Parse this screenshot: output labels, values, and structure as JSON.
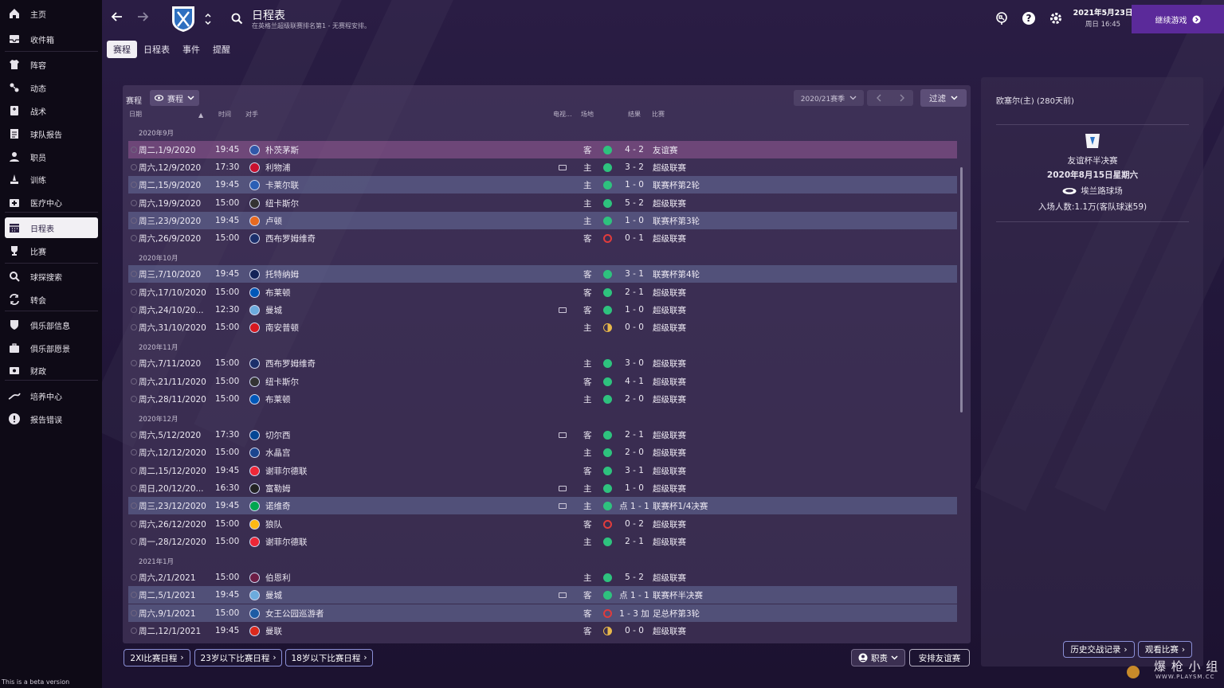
{
  "sidebar": {
    "items": [
      {
        "label": "主页",
        "icon": "home-icon"
      },
      {
        "label": "收件箱",
        "icon": "inbox-icon"
      },
      {
        "label": "阵容",
        "icon": "shirt-icon"
      },
      {
        "label": "动态",
        "icon": "dynamics-icon"
      },
      {
        "label": "战术",
        "icon": "tactics-icon"
      },
      {
        "label": "球队报告",
        "icon": "report-icon"
      },
      {
        "label": "职员",
        "icon": "staff-icon"
      },
      {
        "label": "训练",
        "icon": "training-icon"
      },
      {
        "label": "医疗中心",
        "icon": "medical-icon"
      },
      {
        "label": "日程表",
        "icon": "calendar-icon"
      },
      {
        "label": "比赛",
        "icon": "trophy-icon"
      },
      {
        "label": "球探搜索",
        "icon": "search-icon"
      },
      {
        "label": "转会",
        "icon": "transfer-icon"
      },
      {
        "label": "俱乐部信息",
        "icon": "shield-icon"
      },
      {
        "label": "俱乐部愿景",
        "icon": "briefcase-icon"
      },
      {
        "label": "财政",
        "icon": "finance-icon"
      },
      {
        "label": "培养中心",
        "icon": "development-icon"
      },
      {
        "label": "报告错误",
        "icon": "alert-icon"
      }
    ],
    "active_index": 9,
    "beta": "This is a beta version"
  },
  "header": {
    "title": "日程表",
    "subtitle": "在英格兰超级联赛排名第1 - 无赛程安排。",
    "date": "2021年5月23日",
    "date2": "周日 16:45",
    "continue": "继续游戏"
  },
  "tabs": [
    "赛程",
    "日程表",
    "事件",
    "提醒"
  ],
  "toolbar": {
    "label": "赛程",
    "view": "赛程",
    "season": "2020/21赛季",
    "filter": "过滤"
  },
  "columns": {
    "date": "日期",
    "time": "时间",
    "opponent": "对手",
    "tv": "电视...",
    "venue": "场地",
    "result": "结果",
    "comp": "比赛"
  },
  "months": [
    "2020年9月",
    "2020年10月",
    "2020年11月",
    "2020年12月",
    "2021年1月"
  ],
  "fixtures": [
    {
      "date": "周二,1/9/2020",
      "time": "19:45",
      "opp": "朴茨茅斯",
      "tv": false,
      "venue": "客",
      "res": "win",
      "score": "4 - 2",
      "comp": "友谊赛",
      "style": "sel",
      "crest": "#3057a8"
    },
    {
      "date": "周六,12/9/2020",
      "time": "17:30",
      "opp": "利物浦",
      "tv": true,
      "venue": "主",
      "res": "win",
      "score": "3 - 2",
      "comp": "超级联赛",
      "style": "",
      "crest": "#c8102e"
    },
    {
      "date": "周二,15/9/2020",
      "time": "19:45",
      "opp": "卡莱尔联",
      "tv": false,
      "venue": "主",
      "res": "win",
      "score": "1 - 0",
      "comp": "联赛杯第2轮",
      "style": "hl",
      "crest": "#2a5fb5"
    },
    {
      "date": "周六,19/9/2020",
      "time": "15:00",
      "opp": "纽卡斯尔",
      "tv": false,
      "venue": "主",
      "res": "win",
      "score": "5 - 2",
      "comp": "超级联赛",
      "style": "",
      "crest": "#333333"
    },
    {
      "date": "周三,23/9/2020",
      "time": "19:45",
      "opp": "卢顿",
      "tv": false,
      "venue": "主",
      "res": "win",
      "score": "1 - 0",
      "comp": "联赛杯第3轮",
      "style": "hl",
      "crest": "#e86a1f"
    },
    {
      "date": "周六,26/9/2020",
      "time": "15:00",
      "opp": "西布罗姆维奇",
      "tv": false,
      "venue": "客",
      "res": "loss",
      "score": "0 - 1",
      "comp": "超级联赛",
      "style": "",
      "crest": "#1b2f6b"
    },
    {
      "date": "周三,7/10/2020",
      "time": "19:45",
      "opp": "托特纳姆",
      "tv": false,
      "venue": "客",
      "res": "win",
      "score": "3 - 1",
      "comp": "联赛杯第4轮",
      "style": "hl",
      "crest": "#132257"
    },
    {
      "date": "周六,17/10/2020",
      "time": "15:00",
      "opp": "布莱顿",
      "tv": false,
      "venue": "客",
      "res": "win",
      "score": "2 - 1",
      "comp": "超级联赛",
      "style": "",
      "crest": "#0057b8"
    },
    {
      "date": "周六,24/10/20...",
      "time": "12:30",
      "opp": "曼城",
      "tv": true,
      "venue": "客",
      "res": "win",
      "score": "1 - 0",
      "comp": "超级联赛",
      "style": "",
      "crest": "#6cabdd"
    },
    {
      "date": "周六,31/10/2020",
      "time": "15:00",
      "opp": "南安普顿",
      "tv": false,
      "venue": "主",
      "res": "draw",
      "score": "0 - 0",
      "comp": "超级联赛",
      "style": "",
      "crest": "#d71920"
    },
    {
      "date": "周六,7/11/2020",
      "time": "15:00",
      "opp": "西布罗姆维奇",
      "tv": false,
      "venue": "主",
      "res": "win",
      "score": "3 - 0",
      "comp": "超级联赛",
      "style": "",
      "crest": "#1b2f6b"
    },
    {
      "date": "周六,21/11/2020",
      "time": "15:00",
      "opp": "纽卡斯尔",
      "tv": false,
      "venue": "客",
      "res": "win",
      "score": "4 - 1",
      "comp": "超级联赛",
      "style": "",
      "crest": "#333333"
    },
    {
      "date": "周六,28/11/2020",
      "time": "15:00",
      "opp": "布莱顿",
      "tv": false,
      "venue": "主",
      "res": "win",
      "score": "2 - 0",
      "comp": "超级联赛",
      "style": "",
      "crest": "#0057b8"
    },
    {
      "date": "周六,5/12/2020",
      "time": "17:30",
      "opp": "切尔西",
      "tv": true,
      "venue": "客",
      "res": "win",
      "score": "2 - 1",
      "comp": "超级联赛",
      "style": "",
      "crest": "#034694"
    },
    {
      "date": "周六,12/12/2020",
      "time": "15:00",
      "opp": "水晶宫",
      "tv": false,
      "venue": "主",
      "res": "win",
      "score": "2 - 0",
      "comp": "超级联赛",
      "style": "",
      "crest": "#1b458f"
    },
    {
      "date": "周二,15/12/2020",
      "time": "19:45",
      "opp": "谢菲尔德联",
      "tv": false,
      "venue": "客",
      "res": "win",
      "score": "3 - 1",
      "comp": "超级联赛",
      "style": "",
      "crest": "#ee2737"
    },
    {
      "date": "周日,20/12/20...",
      "time": "16:30",
      "opp": "富勒姆",
      "tv": true,
      "venue": "主",
      "res": "win",
      "score": "1 - 0",
      "comp": "超级联赛",
      "style": "",
      "crest": "#222222"
    },
    {
      "date": "周三,23/12/2020",
      "time": "19:45",
      "opp": "诺维奇",
      "tv": true,
      "venue": "主",
      "res": "win",
      "score": "点 1 - 1",
      "comp": "联赛杯1/4决赛",
      "style": "hl",
      "crest": "#00a650"
    },
    {
      "date": "周六,26/12/2020",
      "time": "15:00",
      "opp": "狼队",
      "tv": false,
      "venue": "客",
      "res": "loss",
      "score": "0 - 2",
      "comp": "超级联赛",
      "style": "",
      "crest": "#fdb913"
    },
    {
      "date": "周一,28/12/2020",
      "time": "15:00",
      "opp": "谢菲尔德联",
      "tv": false,
      "venue": "主",
      "res": "win",
      "score": "2 - 1",
      "comp": "超级联赛",
      "style": "",
      "crest": "#ee2737"
    },
    {
      "date": "周六,2/1/2021",
      "time": "15:00",
      "opp": "伯恩利",
      "tv": false,
      "venue": "主",
      "res": "win",
      "score": "5 - 2",
      "comp": "超级联赛",
      "style": "",
      "crest": "#6c1d45"
    },
    {
      "date": "周二,5/1/2021",
      "time": "19:45",
      "opp": "曼城",
      "tv": true,
      "venue": "客",
      "res": "win",
      "score": "点 1 - 1",
      "comp": "联赛杯半决赛",
      "style": "hl",
      "crest": "#6cabdd"
    },
    {
      "date": "周六,9/1/2021",
      "time": "15:00",
      "opp": "女王公园巡游者",
      "tv": false,
      "venue": "客",
      "res": "loss",
      "score": "1 - 3 加",
      "comp": "足总杯第3轮",
      "style": "hl",
      "crest": "#1d5ba4"
    },
    {
      "date": "周二,12/1/2021",
      "time": "19:45",
      "opp": "曼联",
      "tv": false,
      "venue": "客",
      "res": "draw",
      "score": "0 - 0",
      "comp": "超级联赛",
      "style": "",
      "crest": "#da291c"
    }
  ],
  "side": {
    "head": "欧塞尔(主) (280天前)",
    "comp": "友谊杯半决赛",
    "date": "2020年8月15日星期六",
    "stadium": "埃兰路球场",
    "attendance": "入场人数:1.1万(客队球迷59)",
    "history": "历史交战记录",
    "watch": "观看比赛"
  },
  "bottom": {
    "b1": "2XI比赛日程",
    "b2": "23岁以下比赛日程",
    "b3": "18岁以下比赛日程",
    "role": "职责",
    "arrange": "安排友谊赛"
  },
  "watermark": {
    "text": "爆 枪 小 组",
    "url": "WWW.PLAYSM.CC"
  },
  "colors": {
    "win": "#2ec27e",
    "loss": "#e03c3c",
    "draw": "#e8b84a",
    "accent": "#5b2a9a",
    "btn": "#8b8fd6"
  }
}
